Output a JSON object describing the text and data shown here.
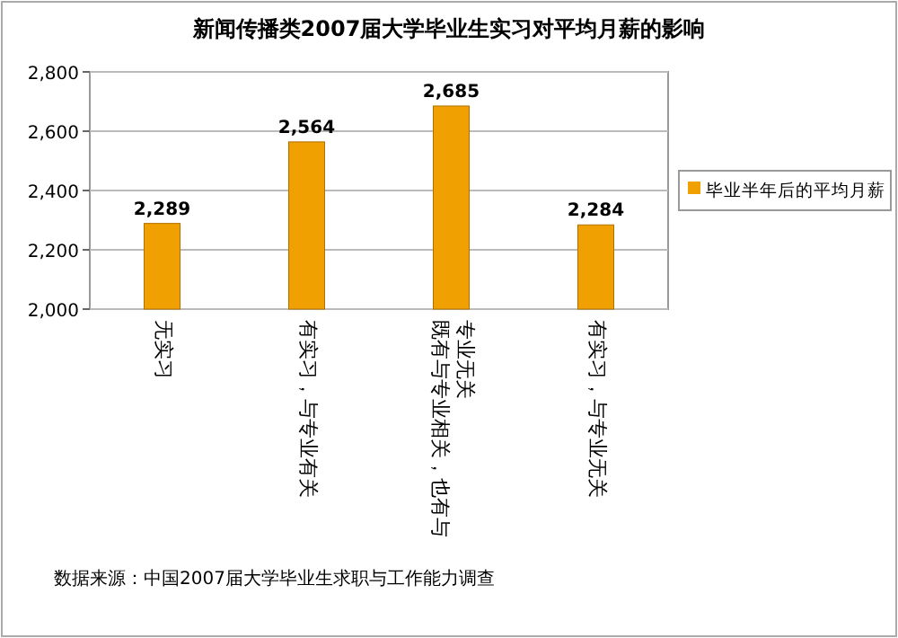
{
  "chart_data": {
    "type": "bar",
    "title": "新闻传播类2007届大学毕业生实习对平均月薪的影响",
    "categories": [
      "无实习",
      "有实习，与专业有关",
      "既有与专业相关，也有与专业无关",
      "有实习，与专业无关"
    ],
    "series": [
      {
        "name": "毕业半年后的平均月薪",
        "color": "#f0a000",
        "values": [
          2289,
          2564,
          2685,
          2284
        ],
        "value_labels": [
          "2,289",
          "2,564",
          "2,685",
          "2,284"
        ]
      }
    ],
    "ylim": [
      2000,
      2800
    ],
    "yticks": [
      {
        "value": 2000,
        "label": "2,000"
      },
      {
        "value": 2200,
        "label": "2,200"
      },
      {
        "value": 2400,
        "label": "2,400"
      },
      {
        "value": 2600,
        "label": "2,600"
      },
      {
        "value": 2800,
        "label": "2,800"
      }
    ],
    "grid": "y",
    "legend": "right",
    "annotations": [
      "数据来源：中国2007届大学毕业生求职与工作能力调查"
    ]
  }
}
